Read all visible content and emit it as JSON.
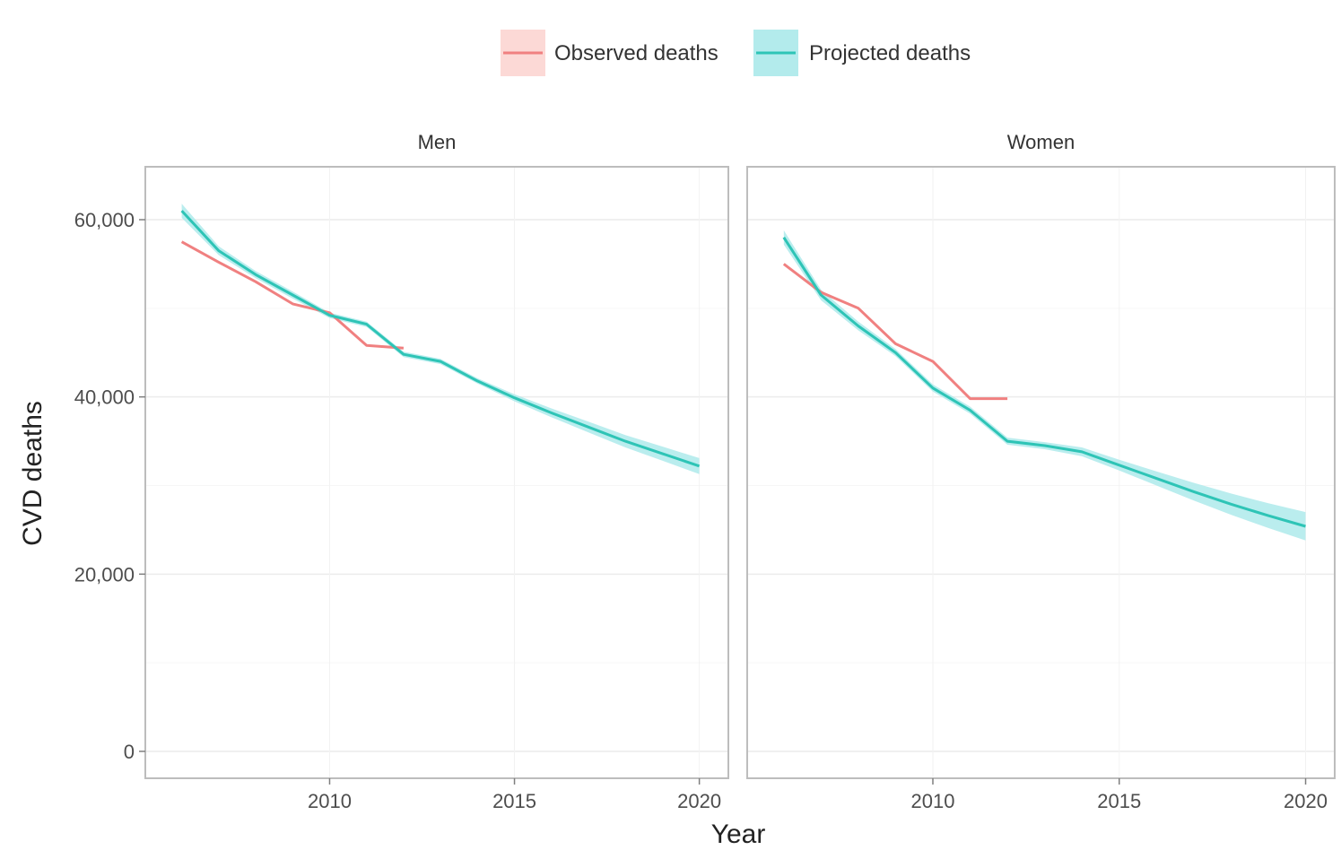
{
  "chart_data": {
    "type": "line",
    "xlabel": "Year",
    "ylabel": "CVD deaths",
    "xlim": [
      2005.5,
      2020.3
    ],
    "ylim": [
      -2000,
      66000
    ],
    "x_ticks": [
      2010,
      2015,
      2020
    ],
    "y_ticks": [
      0,
      20000,
      40000,
      60000
    ],
    "y_tick_labels": [
      "0",
      "20,000",
      "40,000",
      "60,000"
    ],
    "grid": true,
    "legend_position": "top",
    "legend": [
      {
        "name": "Observed deaths",
        "color": "#f08080",
        "band_color": "#fcd9d6"
      },
      {
        "name": "Projected deaths",
        "color": "#2ec4b6",
        "band_color": "#b3ebec"
      }
    ],
    "panels": [
      {
        "label": "Men",
        "series": [
          {
            "name": "Observed deaths",
            "x": [
              2006,
              2007,
              2008,
              2009,
              2010,
              2011,
              2012
            ],
            "y": [
              57500,
              55200,
              53000,
              50500,
              49500,
              45800,
              45500
            ]
          },
          {
            "name": "Projected deaths",
            "x": [
              2006,
              2007,
              2008,
              2009,
              2010,
              2011,
              2012,
              2013,
              2014,
              2015,
              2016,
              2017,
              2018,
              2019,
              2020
            ],
            "y": [
              61000,
              56500,
              53800,
              51500,
              49200,
              48200,
              44800,
              44000,
              41800,
              39900,
              38200,
              36600,
              35000,
              33600,
              32200
            ],
            "lower": [
              60200,
              56000,
              53400,
              51100,
              48900,
              47900,
              44500,
              43700,
              41500,
              39500,
              37700,
              36000,
              34300,
              32800,
              31300
            ],
            "upper": [
              61800,
              57000,
              54200,
              51900,
              49500,
              48500,
              45100,
              44300,
              42100,
              40300,
              38700,
              37200,
              35700,
              34400,
              33100
            ]
          }
        ]
      },
      {
        "label": "Women",
        "series": [
          {
            "name": "Observed deaths",
            "x": [
              2006,
              2007,
              2008,
              2009,
              2010,
              2011,
              2012
            ],
            "y": [
              55000,
              51800,
              50000,
              46000,
              44000,
              39800,
              39800
            ]
          },
          {
            "name": "Projected deaths",
            "x": [
              2006,
              2007,
              2008,
              2009,
              2010,
              2011,
              2012,
              2013,
              2014,
              2015,
              2016,
              2017,
              2018,
              2019,
              2020
            ],
            "y": [
              58000,
              51500,
              48000,
              45000,
              41000,
              38500,
              35000,
              34500,
              33800,
              32300,
              30800,
              29300,
              27900,
              26600,
              25400
            ],
            "lower": [
              57200,
              50900,
              47500,
              44600,
              40600,
              38100,
              34600,
              34100,
              33300,
              31700,
              30000,
              28300,
              26700,
              25200,
              23800
            ],
            "upper": [
              58800,
              52100,
              48500,
              45400,
              41400,
              38900,
              35400,
              34900,
              34300,
              32900,
              31600,
              30300,
              29100,
              28000,
              27000
            ]
          }
        ]
      }
    ]
  }
}
